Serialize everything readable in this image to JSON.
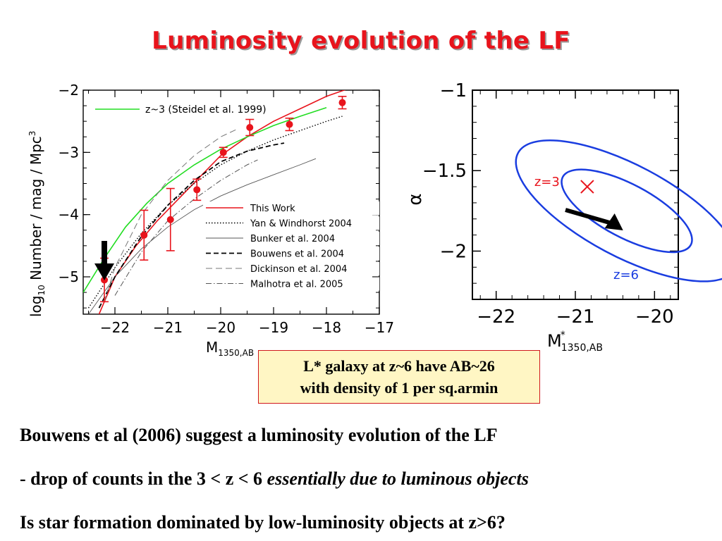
{
  "title": "Luminosity evolution of the LF",
  "callout": {
    "line1": "L* galaxy at z~6 have AB~26",
    "line2": "with density of  1 per sq.armin"
  },
  "bullets": {
    "line1": "Bouwens et al (2006) suggest a luminosity evolution of the  LF",
    "line2_plain": "- drop of counts in the 3 < z < 6 ",
    "line2_italic": "essentially due to luminous objects",
    "line3": "Is star formation dominated by low-luminosity objects at z>6?"
  },
  "colors": {
    "title": "#e8141c",
    "this_work": "#e8141c",
    "steidel": "#22dd22",
    "contours": "#1a3de0"
  },
  "chart_data": [
    {
      "type": "line",
      "xlabel_main": "M",
      "xlabel_sub": "1350,AB",
      "ylabel_main": "log",
      "ylabel_sub": "10",
      "ylabel_rest": " Number / mag / Mpc",
      "ylabel_sup": "3",
      "xlim": [
        -22.6,
        -17
      ],
      "ylim": [
        -5.6,
        -2
      ],
      "xticks": [
        {
          "v": -22,
          "label": "−22"
        },
        {
          "v": -21,
          "label": "−21"
        },
        {
          "v": -20,
          "label": "−20"
        },
        {
          "v": -19,
          "label": "−19"
        },
        {
          "v": -18,
          "label": "−18"
        },
        {
          "v": -17,
          "label": "−17"
        }
      ],
      "yticks": [
        {
          "v": -2,
          "label": "−2"
        },
        {
          "v": -3,
          "label": "−3"
        },
        {
          "v": -4,
          "label": "−4"
        },
        {
          "v": -5,
          "label": "−5"
        }
      ],
      "legend_top": {
        "label": "z~3 (Steidel et al. 1999)",
        "color": "#22dd22"
      },
      "legend": [
        {
          "label": "This Work",
          "style": "solid-red"
        },
        {
          "label": "Yan & Windhorst 2004",
          "style": "dotted"
        },
        {
          "label": "Bunker et al. 2004",
          "style": "thin-solid"
        },
        {
          "label": "Bouwens et al. 2004",
          "style": "dashed"
        },
        {
          "label": "Dickinson et al. 2004",
          "style": "long-dash"
        },
        {
          "label": "Malhotra et al. 2005",
          "style": "dash-dot"
        }
      ],
      "points": [
        {
          "x": -22.2,
          "y": -5.05,
          "err": 0.35
        },
        {
          "x": -21.45,
          "y": -4.33,
          "err": 0.4
        },
        {
          "x": -20.95,
          "y": -4.08,
          "err": 0.5
        },
        {
          "x": -20.45,
          "y": -3.6,
          "err": 0.17
        },
        {
          "x": -19.95,
          "y": -3.0,
          "err": 0.08
        },
        {
          "x": -19.45,
          "y": -2.6,
          "err": 0.13
        },
        {
          "x": -18.7,
          "y": -2.55,
          "err": 0.1
        },
        {
          "x": -17.7,
          "y": -2.2,
          "err": 0.1
        }
      ],
      "series": [
        {
          "name": "This Work",
          "style": "solid-red",
          "x": [
            -22.3,
            -22.0,
            -21.6,
            -21.2,
            -20.8,
            -20.4,
            -20.0,
            -19.5,
            -19.0,
            -18.5,
            -18.0,
            -17.5
          ],
          "y": [
            -5.6,
            -5.0,
            -4.5,
            -4.1,
            -3.75,
            -3.4,
            -3.05,
            -2.75,
            -2.5,
            -2.3,
            -2.1,
            -1.95
          ]
        },
        {
          "name": "z~3 (Steidel et al. 1999)",
          "style": "green",
          "x": [
            -22.6,
            -22.2,
            -21.8,
            -21.4,
            -21.0,
            -20.5,
            -20.0,
            -19.5,
            -19.0,
            -18.5,
            -18.0
          ],
          "y": [
            -5.25,
            -4.7,
            -4.2,
            -3.82,
            -3.5,
            -3.2,
            -2.95,
            -2.75,
            -2.57,
            -2.42,
            -2.28
          ]
        },
        {
          "name": "Yan & Windhorst 2004",
          "style": "dotted",
          "x": [
            -22.5,
            -22.0,
            -21.5,
            -21.0,
            -20.5,
            -20.0,
            -19.5,
            -19.0,
            -18.5,
            -18.0,
            -17.7
          ],
          "y": [
            -5.5,
            -4.85,
            -4.3,
            -3.85,
            -3.5,
            -3.2,
            -2.98,
            -2.8,
            -2.65,
            -2.5,
            -2.42
          ]
        },
        {
          "name": "Bunker et al. 2004",
          "style": "thin-solid",
          "x": [
            -22.5,
            -22.0,
            -21.5,
            -21.0,
            -20.5,
            -20.0,
            -19.5,
            -19.0,
            -18.5,
            -18.2
          ],
          "y": [
            -5.6,
            -5.0,
            -4.55,
            -4.2,
            -3.92,
            -3.7,
            -3.52,
            -3.36,
            -3.2,
            -3.1
          ]
        },
        {
          "name": "Bouwens et al. 2004",
          "style": "dashed",
          "x": [
            -22.3,
            -22.0,
            -21.5,
            -21.0,
            -20.5,
            -20.0,
            -19.5,
            -19.0,
            -18.8
          ],
          "y": [
            -5.5,
            -5.0,
            -4.35,
            -3.85,
            -3.45,
            -3.15,
            -2.98,
            -2.88,
            -2.85
          ]
        },
        {
          "name": "Dickinson et al. 2004",
          "style": "long-dash",
          "x": [
            -22.2,
            -22.0,
            -21.5,
            -21.0,
            -20.5,
            -20.0,
            -19.7
          ],
          "y": [
            -5.4,
            -4.85,
            -4.0,
            -3.45,
            -3.05,
            -2.75,
            -2.63
          ]
        },
        {
          "name": "Malhotra et al. 2005",
          "style": "dash-dot",
          "x": [
            -22.0,
            -21.5,
            -21.0,
            -20.5,
            -20.0,
            -19.5,
            -19.3
          ],
          "y": [
            -5.3,
            -4.6,
            -4.1,
            -3.75,
            -3.45,
            -3.2,
            -3.12
          ]
        }
      ],
      "arrow_x": -22.2
    },
    {
      "type": "contour",
      "xlabel_main": "M",
      "xlabel_sup": "*",
      "xlabel_sub": "1350,AB",
      "ylabel": "α",
      "xlim": [
        -22.3,
        -19.7
      ],
      "ylim": [
        -2.3,
        -1.0
      ],
      "xticks": [
        {
          "v": -22,
          "label": "−22"
        },
        {
          "v": -21,
          "label": "−21"
        },
        {
          "v": -20,
          "label": "−20"
        }
      ],
      "yticks": [
        {
          "v": -1,
          "label": "−1"
        },
        {
          "v": -1.5,
          "label": "−1.5"
        },
        {
          "v": -2,
          "label": "−2"
        }
      ],
      "z3_marker": {
        "x": -20.85,
        "y": -1.6,
        "label": "z=3"
      },
      "z6_label": "z=6",
      "contours": [
        {
          "cx": -20.35,
          "cy": -1.75,
          "rx": 0.55,
          "ry": 0.085,
          "tilt_deg": -62
        },
        {
          "cx": -20.35,
          "cy": -1.75,
          "rx": 0.32,
          "ry": 0.05,
          "tilt_deg": -62
        }
      ],
      "arrow_target": {
        "x": -20.7,
        "y": -1.95
      }
    }
  ]
}
